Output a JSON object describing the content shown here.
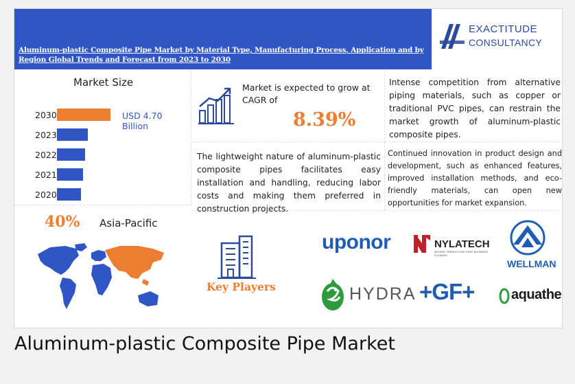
{
  "header": {
    "title": "Aluminum-plastic Composite Pipe Market by Material Type, Manufacturing Process, Application and by Region Global Trends and Forecast from 2023 to 2030",
    "logo_line1": "EXACTITUDE",
    "logo_line2": "CONSULTANCY",
    "band_color": "#2f56c4",
    "accent_color": "#ed7d31"
  },
  "market_size": {
    "title": "Market Size",
    "highlight_label": "USD 4.70 Billion",
    "bars": [
      {
        "year": "2030",
        "value": 4.7,
        "highlight": true
      },
      {
        "year": "2023",
        "value": 2.7,
        "highlight": false
      },
      {
        "year": "2022",
        "value": 2.5,
        "highlight": false
      },
      {
        "year": "2021",
        "value": 2.3,
        "highlight": false
      },
      {
        "year": "2020",
        "value": 2.1,
        "highlight": false
      }
    ]
  },
  "region": {
    "share": "40%",
    "name": "Asia-Pacific"
  },
  "cagr": {
    "text": "Market is expected to grow at CAGR of",
    "value": "8.39%",
    "icon": "growth-chart-icon"
  },
  "driver": {
    "text": "The lightweight nature of aluminum-plastic composite pipes facilitates easy installation and handling, reducing labor costs and making them preferred in construction projects."
  },
  "restraint": {
    "text": "Intense competition from alternative piping materials, such as copper or traditional PVC pipes, can restrain the market growth of aluminum-plastic composite pipes."
  },
  "opportunity": {
    "text": "Continued innovation in product design and development, such as enhanced features, improved installation methods, and eco-friendly materials, can open new opportunities for market expansion."
  },
  "key_players": {
    "label": "Key Players",
    "icon": "building-icon",
    "logos": {
      "uponor": "uponor",
      "nylatech": "NYLATECH",
      "nylatech_sub": "MOVING TRENDS THAT KEEP BUSINESS FLOWING",
      "wellman": "WELLMAN",
      "hydra": "HYDRA",
      "gf": "+GF+",
      "aquatherm": "aquatherm"
    }
  },
  "caption": "Aluminum-plastic Composite Pipe Market"
}
